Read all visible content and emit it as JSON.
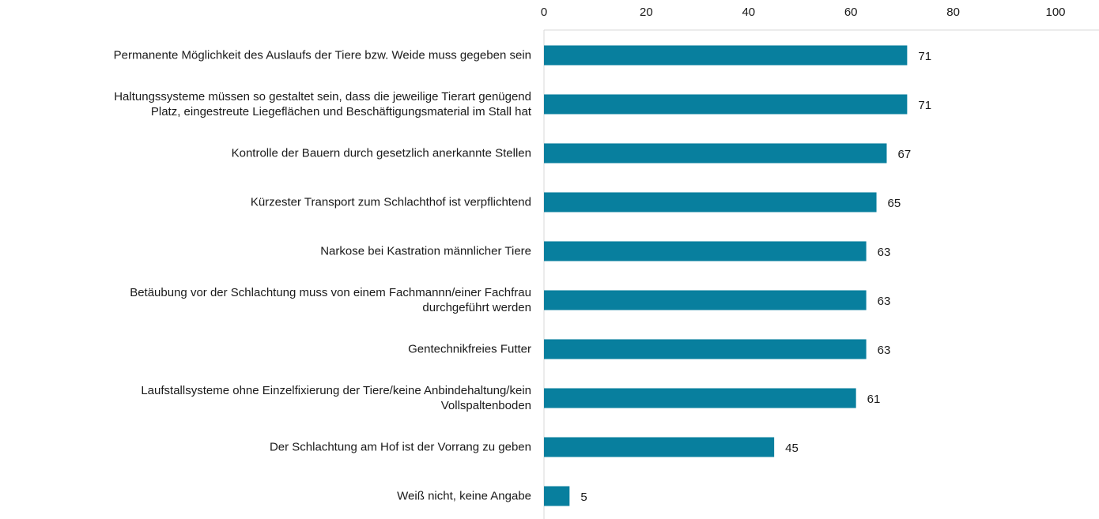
{
  "chart_data": {
    "type": "bar",
    "orientation": "horizontal",
    "categories": [
      "Permanente Möglichkeit des Auslaufs der Tiere bzw. Weide muss gegeben sein",
      "Haltungssysteme müssen so gestaltet sein, dass die jeweilige Tierart genügend\nPlatz, eingestreute Liegeflächen und Beschäftigungsmaterial im Stall hat",
      "Kontrolle der Bauern durch gesetzlich anerkannte Stellen",
      "Kürzester Transport zum Schlachthof ist verpflichtend",
      "Narkose bei Kastration männlicher Tiere",
      "Betäubung vor der Schlachtung muss von einem Fachmannn/einer Fachfrau\ndurchgeführt werden",
      "Gentechnikfreies Futter",
      "Laufstallsysteme ohne Einzelfixierung der Tiere/keine Anbindehaltung/kein\nVollspaltenboden",
      "Der Schlachtung am Hof ist der Vorrang zu geben",
      "Weiß nicht, keine Angabe"
    ],
    "values": [
      71,
      71,
      67,
      65,
      63,
      63,
      63,
      61,
      45,
      5
    ],
    "color": "#087f9e",
    "xlim": [
      0,
      100
    ],
    "xticks": [
      0,
      20,
      40,
      60,
      80,
      100
    ]
  }
}
